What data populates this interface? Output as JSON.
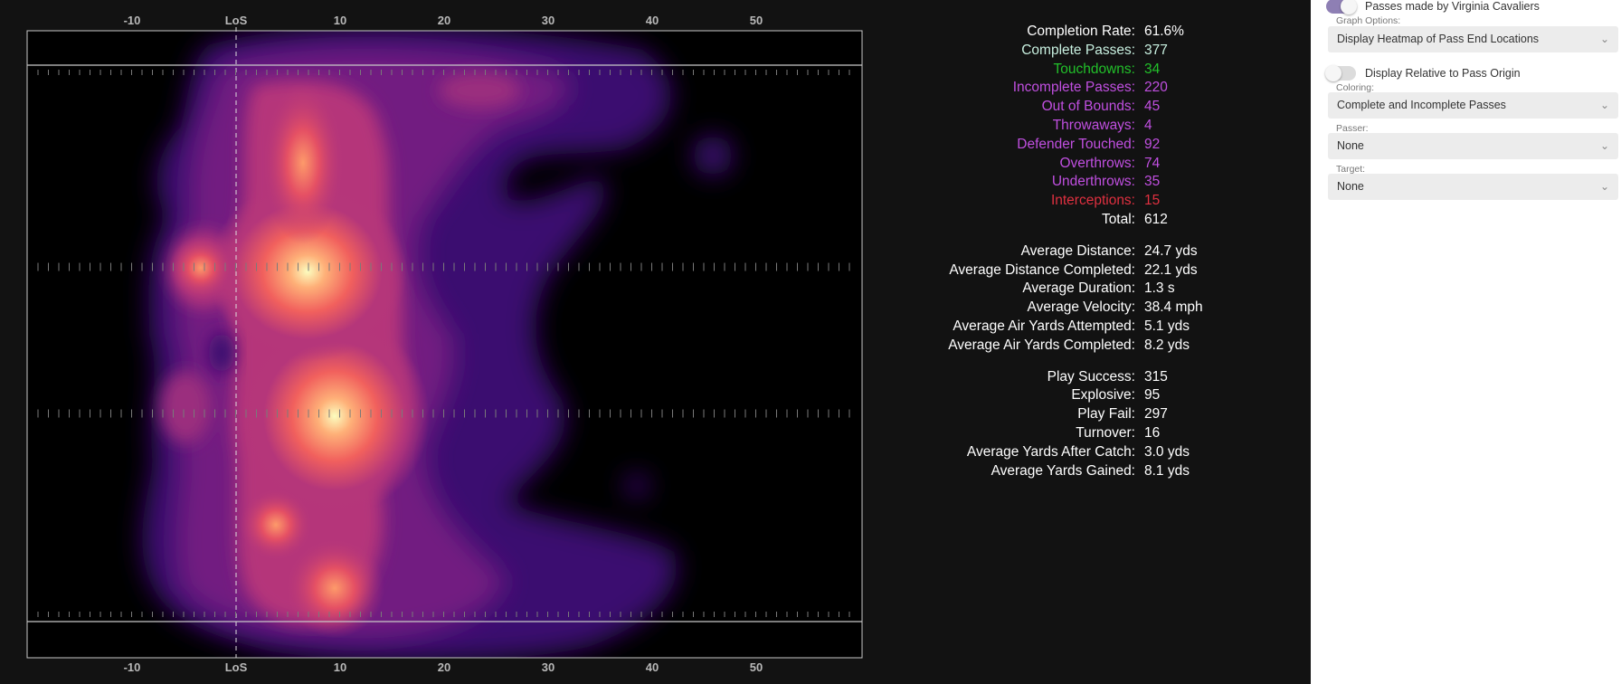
{
  "field": {
    "x_ticks_top": [
      "-10",
      "LoS",
      "10",
      "20",
      "30",
      "40",
      "50"
    ],
    "x_ticks_bottom": [
      "-10",
      "LoS",
      "10",
      "20",
      "30",
      "40",
      "50"
    ]
  },
  "stats": {
    "group1": [
      {
        "label": "Completion Rate:",
        "value": "61.6%",
        "color": "#ffffff"
      },
      {
        "label": "Complete Passes:",
        "value": "377",
        "color": "#c8f0e0"
      },
      {
        "label": "Touchdowns:",
        "value": "34",
        "color": "#22c02a"
      },
      {
        "label": "Incomplete Passes:",
        "value": "220",
        "color": "#c04fe0"
      },
      {
        "label": "Out of Bounds:",
        "value": "45",
        "color": "#c04fe0"
      },
      {
        "label": "Throwaways:",
        "value": "4",
        "color": "#c04fe0"
      },
      {
        "label": "Defender Touched:",
        "value": "92",
        "color": "#c04fe0"
      },
      {
        "label": "Overthrows:",
        "value": "74",
        "color": "#c04fe0"
      },
      {
        "label": "Underthrows:",
        "value": "35",
        "color": "#c04fe0"
      },
      {
        "label": "Interceptions:",
        "value": "15",
        "color": "#e03040"
      },
      {
        "label": "Total:",
        "value": "612",
        "color": "#ffffff"
      }
    ],
    "group2": [
      {
        "label": "Average Distance:",
        "value": "24.7 yds"
      },
      {
        "label": "Average Distance Completed:",
        "value": "22.1 yds"
      },
      {
        "label": "Average Duration:",
        "value": "1.3 s"
      },
      {
        "label": "Average Velocity:",
        "value": "38.4 mph"
      },
      {
        "label": "Average Air Yards Attempted:",
        "value": "5.1 yds"
      },
      {
        "label": "Average Air Yards Completed:",
        "value": "8.2 yds"
      }
    ],
    "group3": [
      {
        "label": "Play Success:",
        "value": "315"
      },
      {
        "label": "Explosive:",
        "value": "95"
      },
      {
        "label": "Play Fail:",
        "value": "297"
      },
      {
        "label": "Turnover:",
        "value": "16"
      },
      {
        "label": "Average Yards After Catch:",
        "value": "3.0 yds"
      },
      {
        "label": "Average Yards Gained:",
        "value": "8.1 yds"
      }
    ]
  },
  "panel": {
    "passes_toggle": {
      "label": "Passes made by Virginia Cavaliers",
      "on": true
    },
    "graph_options": {
      "label": "Graph Options:",
      "value": "Display Heatmap of Pass End Locations"
    },
    "relative_toggle": {
      "label": "Display Relative to Pass Origin",
      "on": false
    },
    "coloring": {
      "label": "Coloring:",
      "value": "Complete and Incomplete Passes"
    },
    "passer": {
      "label": "Passer:",
      "value": "None"
    },
    "target": {
      "label": "Target:",
      "value": "None"
    }
  },
  "colors": {
    "toggle_on": "#8e7fb4",
    "heat_low": "#3b0f70",
    "heat_high": "#fcfdbf"
  }
}
